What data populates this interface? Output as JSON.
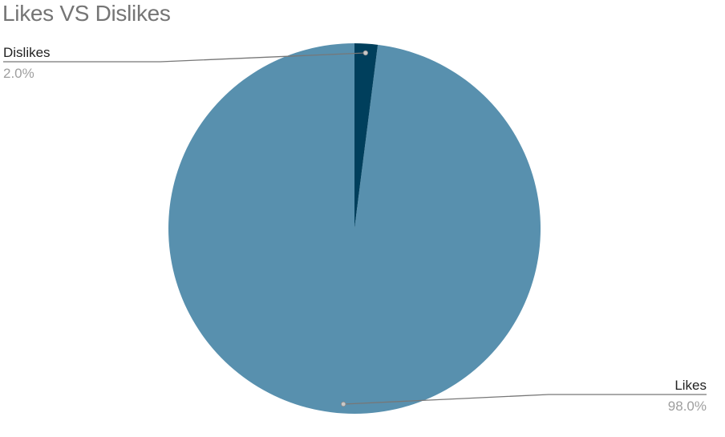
{
  "chart_data": {
    "type": "pie",
    "title": "Likes VS Dislikes",
    "categories": [
      "Likes",
      "Dislikes"
    ],
    "values": [
      98.0,
      2.0
    ],
    "percent_labels": [
      "98.0%",
      "2.0%"
    ],
    "colors": [
      "#5890ae",
      "#003f5c"
    ],
    "start_angle": "12 o'clock",
    "direction": "counter-clockwise",
    "legend": "none",
    "labels": "outside with leader lines"
  }
}
